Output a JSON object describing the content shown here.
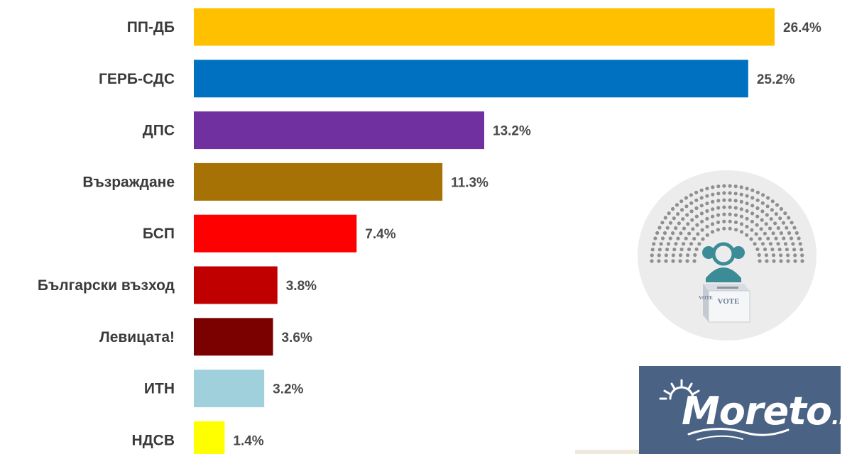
{
  "chart_data": {
    "type": "bar",
    "orientation": "horizontal",
    "title": "",
    "xlabel": "",
    "ylabel": "",
    "xlim": [
      0,
      28
    ],
    "grid": false,
    "legend": "none",
    "categories": [
      "ПП-ДБ",
      "ГЕРБ-СДС",
      "ДПС",
      "Възраждане",
      "БСП",
      "Български възход",
      "Левицата!",
      "ИТН",
      "НДСВ"
    ],
    "values": [
      26.4,
      25.2,
      13.2,
      11.3,
      7.4,
      3.8,
      3.6,
      3.2,
      1.4
    ],
    "value_labels": [
      "26.4%",
      "25.2%",
      "13.2%",
      "11.3%",
      "7.4%",
      "3.8%",
      "3.6%",
      "3.2%",
      "1.4%"
    ],
    "colors": [
      "#ffc000",
      "#0070c0",
      "#7030a0",
      "#a67205",
      "#ff0000",
      "#c00000",
      "#7b0000",
      "#9fd0dc",
      "#ffff00"
    ]
  },
  "badge": {
    "icon": "parliament-ballot-box-icon",
    "ballot_text_front": "VOTE",
    "ballot_text_side": "VOTE"
  },
  "logo": {
    "name": "Moreto",
    "tld": ".net",
    "background": "#4a6385"
  }
}
